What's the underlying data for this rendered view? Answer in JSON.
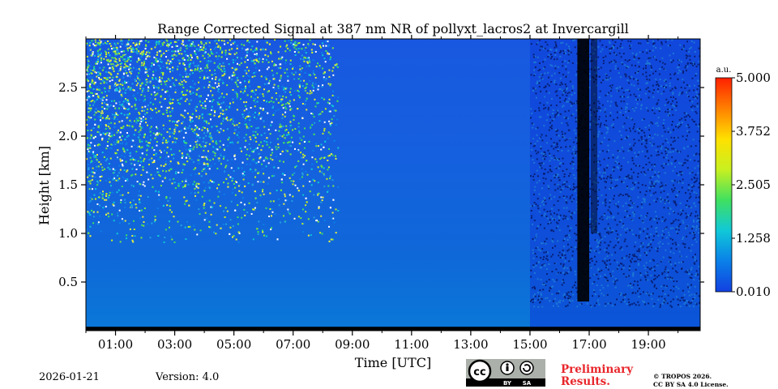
{
  "chart_data": {
    "type": "heatmap",
    "title": "Range Corrected Signal at 387 nm NR of pollyxt_lacros2 at Invercargill",
    "xlabel": "Time [UTC]",
    "ylabel": "Height [km]",
    "x_range_hours": [
      0,
      20.75
    ],
    "ylim": [
      0,
      3.0
    ],
    "x_ticks": [
      {
        "hour": 1,
        "label": "01:00"
      },
      {
        "hour": 3,
        "label": "03:00"
      },
      {
        "hour": 5,
        "label": "05:00"
      },
      {
        "hour": 7,
        "label": "07:00"
      },
      {
        "hour": 9,
        "label": "09:00"
      },
      {
        "hour": 11,
        "label": "11:00"
      },
      {
        "hour": 13,
        "label": "13:00"
      },
      {
        "hour": 15,
        "label": "15:00"
      },
      {
        "hour": 17,
        "label": "17:00"
      },
      {
        "hour": 19,
        "label": "19:00"
      }
    ],
    "y_ticks": [
      {
        "value": 0.5,
        "label": "0.5"
      },
      {
        "value": 1.0,
        "label": "1.0"
      },
      {
        "value": 1.5,
        "label": "1.5"
      },
      {
        "value": 2.0,
        "label": "2.0"
      },
      {
        "value": 2.5,
        "label": "2.5"
      }
    ],
    "colorbar": {
      "unit": "a.u.",
      "min": 0.01,
      "max": 5.0,
      "ticks": [
        {
          "value": 0.01,
          "label": "0.010"
        },
        {
          "value": 1.258,
          "label": "1.258"
        },
        {
          "value": 2.505,
          "label": "2.505"
        },
        {
          "value": 3.752,
          "label": "3.752"
        },
        {
          "value": 5.0,
          "label": "5.000"
        }
      ],
      "colors": [
        "#1240e0",
        "#0a80e8",
        "#10c8d8",
        "#40e060",
        "#c8f020",
        "#ffe000",
        "#ff8000",
        "#ff2000"
      ]
    },
    "noisy_period_hours": [
      0,
      8.5
    ],
    "strong_attenuation_hours": [
      16.6,
      17.0
    ],
    "reduced_signal_hours": [
      15.0,
      20.75
    ]
  },
  "footer": {
    "date": "2026-01-21",
    "version": "Version: 4.0",
    "preliminary_line1": "Preliminary",
    "preliminary_line2": "Results.",
    "copyright_line1": "© TROPOS 2026.",
    "copyright_line2": "CC BY SA 4.0 License.",
    "cc_logo": "cc-by-sa-icon",
    "cc_by": "BY",
    "cc_sa": "SA"
  }
}
